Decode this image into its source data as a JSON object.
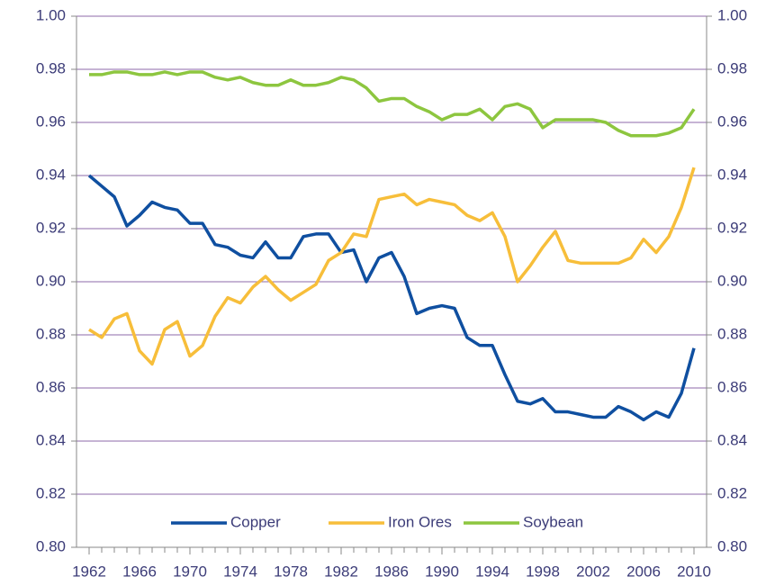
{
  "chart_data": {
    "type": "line",
    "x": [
      1962,
      1963,
      1964,
      1965,
      1966,
      1967,
      1968,
      1969,
      1970,
      1971,
      1972,
      1973,
      1974,
      1975,
      1976,
      1977,
      1978,
      1979,
      1980,
      1981,
      1982,
      1983,
      1984,
      1985,
      1986,
      1987,
      1988,
      1989,
      1990,
      1991,
      1992,
      1993,
      1994,
      1995,
      1996,
      1997,
      1998,
      1999,
      2000,
      2001,
      2002,
      2003,
      2004,
      2005,
      2006,
      2007,
      2008,
      2009,
      2010
    ],
    "series": [
      {
        "name": "Copper",
        "color": "#0f4fa0",
        "values": [
          0.94,
          0.936,
          0.932,
          0.921,
          0.925,
          0.93,
          0.928,
          0.927,
          0.922,
          0.922,
          0.914,
          0.913,
          0.91,
          0.909,
          0.915,
          0.909,
          0.909,
          0.917,
          0.918,
          0.918,
          0.911,
          0.912,
          0.9,
          0.909,
          0.911,
          0.902,
          0.888,
          0.89,
          0.891,
          0.89,
          0.879,
          0.876,
          0.876,
          0.865,
          0.855,
          0.854,
          0.856,
          0.851,
          0.851,
          0.85,
          0.849,
          0.849,
          0.853,
          0.851,
          0.848,
          0.851,
          0.849,
          0.858,
          0.875
        ]
      },
      {
        "name": "Iron Ores",
        "color": "#f7be3a",
        "values": [
          0.882,
          0.879,
          0.886,
          0.888,
          0.874,
          0.869,
          0.882,
          0.885,
          0.872,
          0.876,
          0.887,
          0.894,
          0.892,
          0.898,
          0.902,
          0.897,
          0.893,
          0.896,
          0.899,
          0.908,
          0.911,
          0.918,
          0.917,
          0.931,
          0.932,
          0.933,
          0.929,
          0.931,
          0.93,
          0.929,
          0.925,
          0.923,
          0.926,
          0.917,
          0.9,
          0.906,
          0.913,
          0.919,
          0.908,
          0.907,
          0.907,
          0.907,
          0.907,
          0.909,
          0.916,
          0.911,
          0.917,
          0.928,
          0.943
        ]
      },
      {
        "name": "Soybean",
        "color": "#8dc63f",
        "values": [
          0.978,
          0.978,
          0.979,
          0.979,
          0.978,
          0.978,
          0.979,
          0.978,
          0.979,
          0.979,
          0.977,
          0.976,
          0.977,
          0.975,
          0.974,
          0.974,
          0.976,
          0.974,
          0.974,
          0.975,
          0.977,
          0.976,
          0.973,
          0.968,
          0.969,
          0.969,
          0.966,
          0.964,
          0.961,
          0.963,
          0.963,
          0.965,
          0.961,
          0.966,
          0.967,
          0.965,
          0.958,
          0.961,
          0.961,
          0.961,
          0.961,
          0.96,
          0.957,
          0.955,
          0.955,
          0.955,
          0.956,
          0.958,
          0.965
        ]
      }
    ],
    "xlim": [
      1961,
      2011
    ],
    "xticks": [
      1962,
      1966,
      1970,
      1974,
      1978,
      1982,
      1986,
      1990,
      1994,
      1998,
      2002,
      2006,
      2010
    ],
    "ylim": [
      0.8,
      1.0
    ],
    "yticks": [
      {
        "value": 0.8,
        "label": "0.80"
      },
      0.82,
      0.84,
      0.86,
      0.88,
      {
        "value": 0.9,
        "label": "0.90"
      },
      0.92,
      0.94,
      0.96,
      0.98,
      {
        "value": 1.0,
        "label": "1.00"
      }
    ],
    "y2lim": [
      0.8,
      1.0
    ],
    "y2ticks": [
      {
        "value": 0.8,
        "label": "0.80"
      },
      0.82,
      0.84,
      0.86,
      0.88,
      {
        "value": 0.9,
        "label": "0.90"
      },
      0.92,
      0.94,
      0.96,
      0.98,
      {
        "value": 1.0,
        "label": "1.00"
      }
    ],
    "grid": true,
    "legend": "bottom"
  }
}
